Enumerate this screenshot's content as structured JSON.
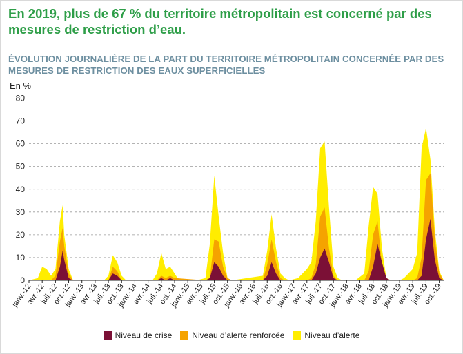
{
  "headline": "En 2019, plus de 67 % du territoire métropolitain est concerné par des mesures de restriction d’eau.",
  "chart_data": {
    "type": "area",
    "title": "ÉVOLUTION JOURNALIÈRE DE LA PART DU TERRITOIRE MÉTROPOLITAIN CONCERNÉE PAR DES MESURES DE RESTRICTION DES EAUX SUPERFICIELLES",
    "ylabel": "En %",
    "ylim": [
      0,
      85
    ],
    "yticks": [
      0,
      10,
      20,
      30,
      40,
      50,
      60,
      70,
      80
    ],
    "grid": "horizontal dashed",
    "stacked": false,
    "x_range": [
      "2012-01",
      "2019-11"
    ],
    "x_tick_labels": [
      "janv.-12",
      "avr.-12",
      "juil.-12",
      "oct.-12",
      "janv.-13",
      "avr.-13",
      "juil.-13",
      "oct.-13",
      "janv.-14",
      "avr.-14",
      "juil.-14",
      "oct.-14",
      "janv.-15",
      "avr.-15",
      "juil.-15",
      "oct.-15",
      "janv.-16",
      "avr.-16",
      "juil.-16",
      "oct.-16",
      "janv.-17",
      "avr.-17",
      "juil.-17",
      "oct.-17",
      "janv.-18",
      "avr.-18",
      "juil.-18",
      "oct.-18",
      "janv.-19",
      "avr.-19",
      "juil.-19",
      "oct.-19"
    ],
    "legend_position": "bottom",
    "series": [
      {
        "name": "Niveau d’alerte",
        "color": "#ffed00",
        "x": [
          "2012-01",
          "2012-03",
          "2012-04",
          "2012-05",
          "2012-06",
          "2012-07",
          "2012-07-20",
          "2012-08",
          "2012-08-20",
          "2012-09",
          "2012-10",
          "2012-11",
          "2013-06",
          "2013-07",
          "2013-08",
          "2013-09",
          "2013-10",
          "2013-11",
          "2014-05",
          "2014-06",
          "2014-07",
          "2014-08",
          "2014-09",
          "2014-10",
          "2014-11",
          "2015-03",
          "2015-05",
          "2015-06",
          "2015-07",
          "2015-08",
          "2015-09",
          "2015-10",
          "2015-11",
          "2016-06",
          "2016-07",
          "2016-08",
          "2016-09",
          "2016-10",
          "2016-11",
          "2016-12",
          "2017-02",
          "2017-03",
          "2017-04",
          "2017-05",
          "2017-06",
          "2017-07",
          "2017-08",
          "2017-09",
          "2017-10",
          "2017-11",
          "2017-12",
          "2018-03",
          "2018-05",
          "2018-06",
          "2018-07",
          "2018-08",
          "2018-09",
          "2018-10",
          "2018-11",
          "2019-01",
          "2019-02",
          "2019-03",
          "2019-04",
          "2019-05",
          "2019-06",
          "2019-07",
          "2019-08",
          "2019-09",
          "2019-10",
          "2019-11"
        ],
        "values": [
          0,
          1,
          6,
          5,
          2,
          5,
          18,
          26,
          33,
          20,
          5,
          0,
          0,
          2,
          11,
          8,
          2,
          0,
          0,
          3,
          12,
          5,
          6,
          3,
          0,
          0,
          1,
          16,
          46,
          28,
          12,
          1,
          0,
          2,
          13,
          29,
          14,
          3,
          1,
          0,
          1,
          3,
          5,
          8,
          26,
          58,
          61,
          32,
          6,
          1,
          0,
          0,
          3,
          24,
          41,
          38,
          14,
          1,
          0,
          0,
          1,
          3,
          5,
          12,
          58,
          67,
          53,
          22,
          4,
          0
        ]
      },
      {
        "name": "Niveau d’alerte renforcée",
        "color": "#f5a300",
        "x": [
          "2012-06",
          "2012-07",
          "2012-08",
          "2012-08-20",
          "2012-09",
          "2012-10",
          "2012-11",
          "2013-07",
          "2013-08",
          "2013-09",
          "2013-10",
          "2014-06",
          "2014-07",
          "2014-08",
          "2014-09",
          "2014-10",
          "2015-05",
          "2015-06",
          "2015-07",
          "2015-08",
          "2015-09",
          "2015-10",
          "2015-11",
          "2016-06",
          "2016-07",
          "2016-08",
          "2016-09",
          "2016-10",
          "2016-11",
          "2017-04",
          "2017-05",
          "2017-06",
          "2017-07",
          "2017-08",
          "2017-09",
          "2017-10",
          "2017-11",
          "2018-05",
          "2018-06",
          "2018-07",
          "2018-08",
          "2018-09",
          "2018-10",
          "2018-11",
          "2019-04",
          "2019-05",
          "2019-06",
          "2019-07",
          "2019-08",
          "2019-09",
          "2019-10",
          "2019-11"
        ],
        "values": [
          0,
          2,
          17,
          23,
          15,
          3,
          0,
          0,
          6,
          4,
          0,
          0,
          2,
          1,
          2,
          1,
          0,
          1,
          18,
          17,
          6,
          1,
          0,
          0,
          7,
          18,
          8,
          1,
          0,
          0,
          1,
          7,
          28,
          32,
          14,
          2,
          0,
          0,
          4,
          20,
          26,
          7,
          1,
          0,
          0,
          1,
          10,
          44,
          47,
          18,
          3,
          0
        ]
      },
      {
        "name": "Niveau de crise",
        "color": "#7b1036",
        "x": [
          "2012-07",
          "2012-08",
          "2012-08-20",
          "2012-09",
          "2012-10",
          "2012-11",
          "2013-07",
          "2013-08",
          "2013-09",
          "2013-10",
          "2014-06",
          "2014-07",
          "2014-08",
          "2014-09",
          "2014-10",
          "2015-05",
          "2015-06",
          "2015-07",
          "2015-08",
          "2015-09",
          "2015-10",
          "2015-11",
          "2016-06",
          "2016-07",
          "2016-08",
          "2016-09",
          "2016-10",
          "2016-11",
          "2017-05",
          "2017-06",
          "2017-07",
          "2017-08",
          "2017-09",
          "2017-10",
          "2017-11",
          "2018-06",
          "2018-07",
          "2018-08",
          "2018-09",
          "2018-10",
          "2018-11",
          "2019-05",
          "2019-06",
          "2019-07",
          "2019-08",
          "2019-09",
          "2019-10",
          "2019-11"
        ],
        "values": [
          0,
          6,
          13,
          9,
          1,
          0,
          0,
          3,
          2,
          0,
          0,
          1,
          0,
          1,
          0,
          0,
          1,
          8,
          6,
          2,
          0,
          0,
          0,
          2,
          8,
          3,
          0,
          0,
          0,
          3,
          10,
          14,
          8,
          1,
          0,
          0,
          6,
          16,
          8,
          1,
          0,
          0,
          2,
          18,
          27,
          9,
          1,
          0
        ]
      }
    ],
    "legend": [
      {
        "label": "Niveau de crise",
        "color": "#7b1036"
      },
      {
        "label": "Niveau d’alerte renforcée",
        "color": "#f5a300"
      },
      {
        "label": "Niveau d’alerte",
        "color": "#ffed00"
      }
    ]
  }
}
